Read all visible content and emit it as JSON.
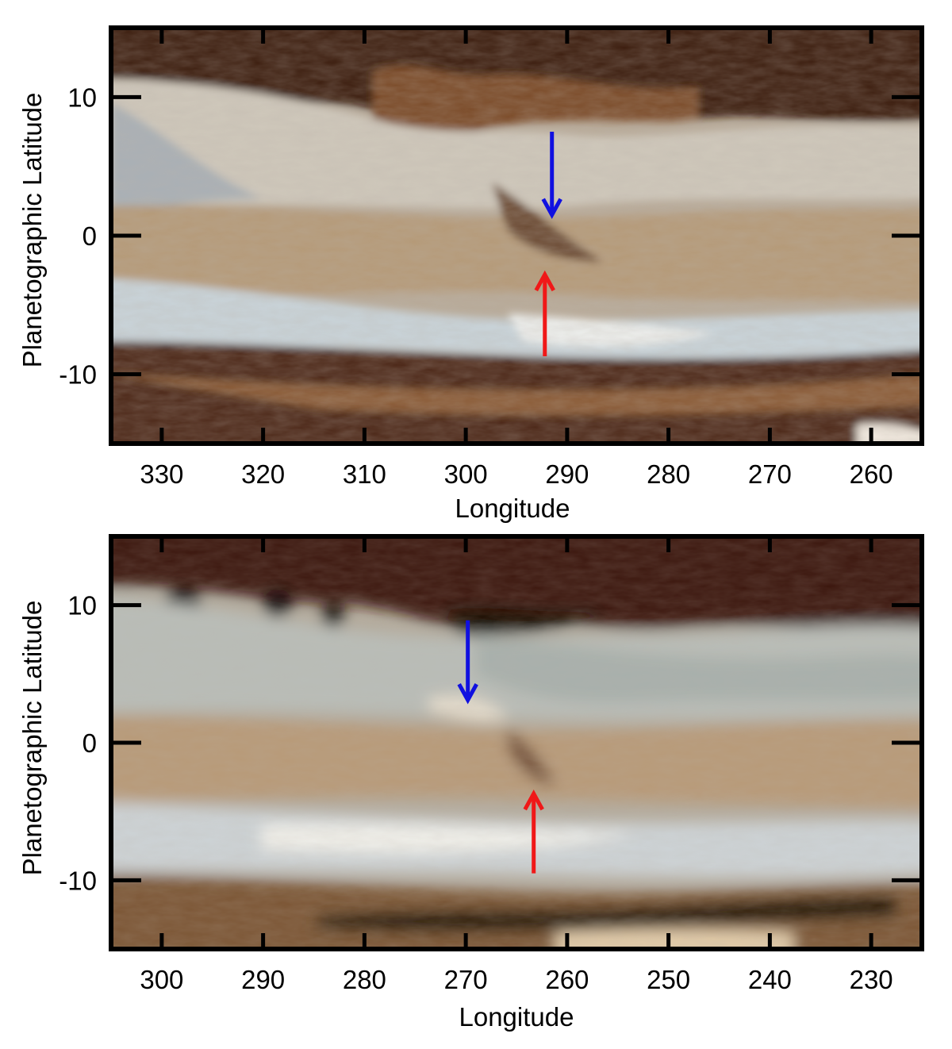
{
  "panels": [
    {
      "id": "top",
      "xlabel": "Longitude",
      "ylabel": "Planetographic Latitude",
      "x_ticks": [
        330,
        320,
        310,
        300,
        290,
        280,
        270,
        260
      ],
      "y_ticks": [
        10,
        0,
        -10
      ],
      "xlim": [
        335,
        255
      ],
      "ylim": [
        -15,
        15
      ],
      "arrows": [
        {
          "color": "#1010e0",
          "name": "blue-arrow",
          "direction": "down",
          "lon": 291.5,
          "lat_start": 7.5,
          "lat_end": 1.5
        },
        {
          "color": "#f01818",
          "name": "red-arrow",
          "direction": "up",
          "lon": 292.2,
          "lat_start": -8.7,
          "lat_end": -2.8
        }
      ]
    },
    {
      "id": "bottom",
      "xlabel": "Longitude",
      "ylabel": "Planetographic Latitude",
      "x_ticks": [
        300,
        290,
        280,
        270,
        260,
        250,
        240,
        230
      ],
      "y_ticks": [
        10,
        0,
        -10
      ],
      "xlim": [
        305,
        225
      ],
      "ylim": [
        -15,
        15
      ],
      "arrows": [
        {
          "color": "#1010e0",
          "name": "blue-arrow",
          "direction": "down",
          "lon": 269.8,
          "lat_start": 8.9,
          "lat_end": 3.1
        },
        {
          "color": "#f01818",
          "name": "red-arrow",
          "direction": "up",
          "lon": 263.3,
          "lat_start": -9.5,
          "lat_end": -3.7
        }
      ]
    }
  ],
  "image_tones": {
    "belt_north": "#3a1a0a",
    "zone_light": "#c9c4b8",
    "zone_blue": "#9aa8b0",
    "belt_equator": "#a58a6c",
    "belt_south": "#4a2a16",
    "highlight": "#eeeae0"
  }
}
